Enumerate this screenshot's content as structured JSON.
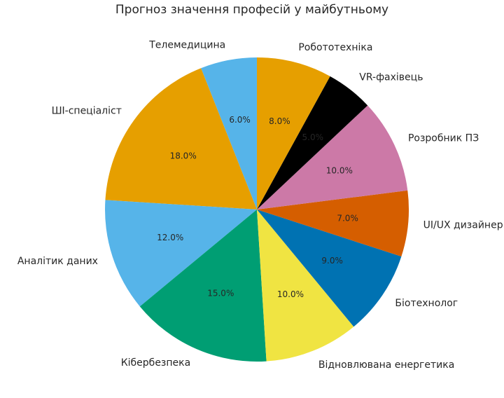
{
  "chart_data": {
    "type": "pie",
    "title": "Прогноз значення професій у майбутньому",
    "start_angle_deg": 90,
    "direction": "counterclockwise",
    "slices": [
      {
        "label": "Телемедицина",
        "value": 6.0,
        "pct_text": "6.0%",
        "color": "#56B4E9"
      },
      {
        "label": "ШІ-спеціаліст",
        "value": 18.0,
        "pct_text": "18.0%",
        "color": "#E69F00"
      },
      {
        "label": "Аналітик даних",
        "value": 12.0,
        "pct_text": "12.0%",
        "color": "#56B4E9"
      },
      {
        "label": "Кібербезпека",
        "value": 15.0,
        "pct_text": "15.0%",
        "color": "#009E73"
      },
      {
        "label": "Відновлювана енергетика",
        "value": 10.0,
        "pct_text": "10.0%",
        "color": "#F0E442"
      },
      {
        "label": "Біотехнолог",
        "value": 9.0,
        "pct_text": "9.0%",
        "color": "#0072B2"
      },
      {
        "label": "UI/UX дизайнер",
        "value": 7.0,
        "pct_text": "7.0%",
        "color": "#D55E00"
      },
      {
        "label": "Розробник ПЗ",
        "value": 10.0,
        "pct_text": "10.0%",
        "color": "#CC79A7"
      },
      {
        "label": "VR-фахівець",
        "value": 5.0,
        "pct_text": "5.0%",
        "color": "#000000"
      },
      {
        "label": "Робототехніка",
        "value": 8.0,
        "pct_text": "8.0%",
        "color": "#E69F00"
      }
    ]
  }
}
